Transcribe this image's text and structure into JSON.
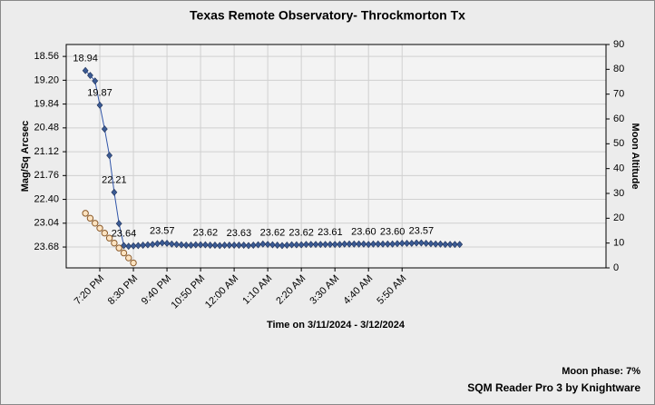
{
  "chart_data": {
    "type": "line",
    "title": "Texas Remote Observatory- Throckmorton Tx",
    "x_label": "Time on 3/11/2024 - 3/12/2024",
    "y_label": "Mag/Sq Arcsec",
    "y2_label": "Moon Altitude",
    "moon_phase": "Moon phase: 7%",
    "footer": "SQM Reader Pro 3 by Knightware",
    "grid": true,
    "xlim": [
      "6:10 PM",
      "12:55 PM"
    ],
    "xticks": [
      "7:20 PM",
      "8:30 PM",
      "9:40 PM",
      "10:50 PM",
      "12:00 AM",
      "1:10 AM",
      "2:20 AM",
      "3:30 AM",
      "4:40 AM",
      "5:50 AM"
    ],
    "ylim": [
      24.24,
      18.24
    ],
    "yticks": [
      18.56,
      {
        "value": 19.2,
        "label": "19.20"
      },
      19.84,
      20.48,
      21.12,
      21.76,
      {
        "value": 22.4,
        "label": "22.40"
      },
      23.04,
      23.68
    ],
    "y2lim": [
      0,
      90
    ],
    "y2ticks": [
      0,
      10,
      20,
      30,
      40,
      50,
      60,
      70,
      80,
      90
    ],
    "series": [
      {
        "color": "#3b5b94",
        "line_color": "#2f54a8",
        "x": [
          "6:50 PM",
          "7:00 PM",
          "7:10 PM",
          "7:20 PM",
          "7:30 PM",
          "7:40 PM",
          "7:50 PM",
          "8:00 PM",
          "8:10 PM",
          "8:20 PM",
          "8:30 PM",
          "8:40 PM",
          "8:50 PM",
          "9:00 PM",
          "9:10 PM",
          "9:20 PM",
          "9:30 PM",
          "9:40 PM",
          "9:50 PM",
          "10:00 PM",
          "10:10 PM",
          "10:20 PM",
          "10:30 PM",
          "10:40 PM",
          "10:50 PM",
          "11:00 PM",
          "11:10 PM",
          "11:20 PM",
          "11:30 PM",
          "11:40 PM",
          "11:50 PM",
          "12:00 AM",
          "12:10 AM",
          "12:20 AM",
          "12:30 AM",
          "12:40 AM",
          "12:50 AM",
          "1:00 AM",
          "1:10 AM",
          "1:20 AM",
          "1:30 AM",
          "1:40 AM",
          "1:50 AM",
          "2:00 AM",
          "2:10 AM",
          "2:20 AM",
          "2:30 AM",
          "2:40 AM",
          "2:50 AM",
          "3:00 AM",
          "3:10 AM",
          "3:20 AM",
          "3:30 AM",
          "3:40 AM",
          "3:50 AM",
          "4:00 AM",
          "4:10 AM",
          "4:20 AM",
          "4:30 AM",
          "4:40 AM",
          "4:50 AM",
          "5:00 AM",
          "5:10 AM",
          "5:20 AM",
          "5:30 AM",
          "5:40 AM",
          "5:50 AM",
          "6:00 AM",
          "6:10 AM",
          "6:20 AM",
          "6:30 AM",
          "6:40 AM",
          "6:50 AM",
          "7:00 AM",
          "7:10 AM",
          "7:20 AM",
          "7:30 AM",
          "7:40 AM",
          "7:50 AM"
        ],
        "values": [
          18.94,
          19.07,
          19.22,
          19.87,
          20.51,
          21.22,
          22.21,
          23.05,
          23.64,
          23.66,
          23.65,
          23.64,
          23.63,
          23.62,
          23.61,
          23.59,
          23.57,
          23.58,
          23.6,
          23.61,
          23.62,
          23.63,
          23.63,
          23.62,
          23.62,
          23.62,
          23.63,
          23.63,
          23.64,
          23.63,
          23.63,
          23.63,
          23.63,
          23.63,
          23.64,
          23.63,
          23.62,
          23.6,
          23.61,
          23.62,
          23.63,
          23.64,
          23.63,
          23.62,
          23.62,
          23.62,
          23.61,
          23.61,
          23.61,
          23.61,
          23.61,
          23.61,
          23.61,
          23.61,
          23.6,
          23.6,
          23.6,
          23.6,
          23.6,
          23.61,
          23.6,
          23.6,
          23.6,
          23.6,
          23.6,
          23.59,
          23.58,
          23.58,
          23.58,
          23.57,
          23.57,
          23.58,
          23.59,
          23.6,
          23.6,
          23.61,
          23.61,
          23.61,
          23.61
        ],
        "value_labels": [
          "18.94",
          null,
          null,
          "19.87",
          null,
          null,
          "22.21",
          null,
          "23.64",
          null,
          null,
          null,
          null,
          null,
          null,
          null,
          "23.57",
          null,
          null,
          null,
          null,
          null,
          null,
          null,
          null,
          "23.62",
          null,
          null,
          null,
          null,
          null,
          null,
          "23.63",
          null,
          null,
          null,
          null,
          null,
          null,
          "23.62",
          null,
          null,
          null,
          null,
          null,
          "23.62",
          null,
          null,
          null,
          null,
          null,
          "23.61",
          null,
          null,
          null,
          null,
          null,
          null,
          "23.60",
          null,
          null,
          null,
          null,
          null,
          "23.60",
          null,
          null,
          null,
          null,
          null,
          "23.57",
          null,
          null,
          null,
          null,
          null,
          null,
          null,
          null
        ]
      },
      {
        "axis": "y2",
        "color": "#fde3c0",
        "edge_color": "#8a5a2a",
        "x": [
          "6:50 PM",
          "7:00 PM",
          "7:10 PM",
          "7:20 PM",
          "7:30 PM",
          "7:40 PM",
          "7:50 PM",
          "8:00 PM",
          "8:10 PM",
          "8:20 PM",
          "8:30 PM"
        ],
        "values": [
          22,
          20,
          18,
          16,
          14,
          12,
          10,
          8,
          6,
          4,
          2
        ]
      }
    ]
  }
}
